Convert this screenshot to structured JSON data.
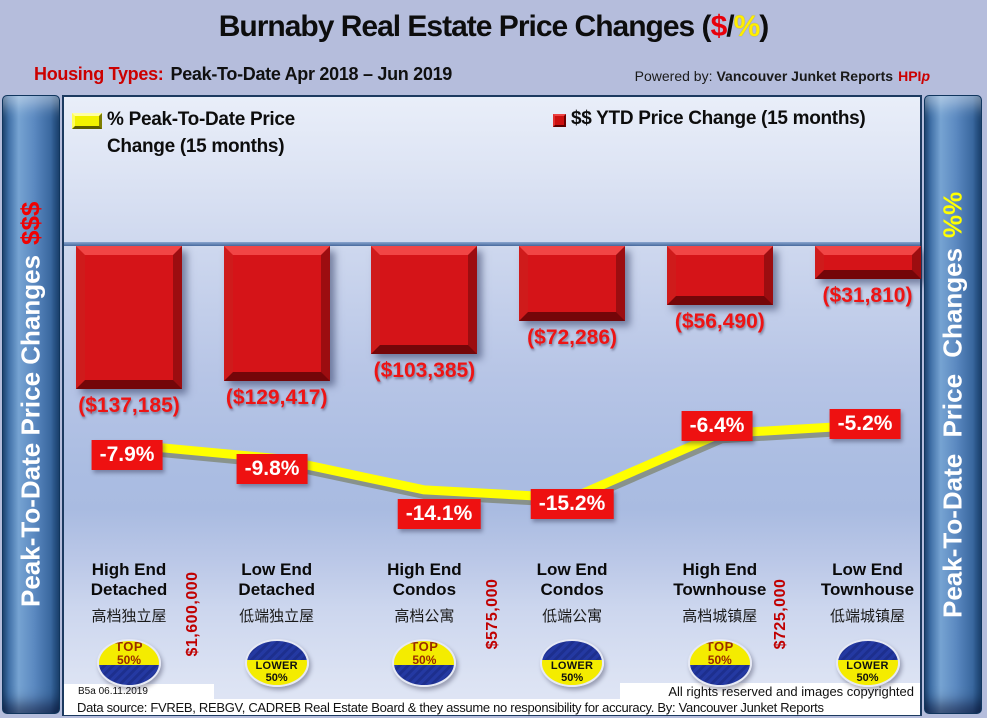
{
  "title": {
    "main": "Burnaby Real Estate Price Changes (",
    "dollar": "$",
    "slash": "/",
    "pct": "%",
    "close": ")"
  },
  "subtitle": {
    "label": "Housing Types:",
    "range": "Peak-To-Date Apr 2018 – Jun 2019"
  },
  "powered_by": {
    "prefix": "Powered by:",
    "brand": "Vancouver Junket Reports",
    "hpi": "HPI",
    "p": "p"
  },
  "legend": {
    "pct_label": "% Peak-To-Date Price Change (15 months)",
    "usd_label": "$$ YTD Price Change (15 months)"
  },
  "left_rail": {
    "text": "Peak-To-Date Price Changes",
    "accent": "$$$"
  },
  "right_rail": {
    "text": "Peak-To-Date Price Changes",
    "accent": "%%"
  },
  "chart_data": {
    "type": "bar+line",
    "categories": [
      "High End Detached",
      "Low End Detached",
      "High End Condos",
      "Low End Condos",
      "High End Townhouse",
      "Low End Townhouse"
    ],
    "categories_zh": [
      "高档独立屋",
      "低端独立屋",
      "高档公寓",
      "低端公寓",
      "高档城镇屋",
      "低端城镇屋"
    ],
    "series": [
      {
        "name": "$$ YTD Price Change (15 months)",
        "type": "bar",
        "color": "#d51418",
        "values": [
          -137185,
          -129417,
          -103385,
          -72286,
          -56490,
          -31810
        ],
        "labels": [
          "($137,185)",
          "($129,417)",
          "($103,385)",
          "($72,286)",
          "($56,490)",
          "($31,810)"
        ]
      },
      {
        "name": "% Peak-To-Date Price Change (15 months)",
        "type": "line",
        "color": "#ffff00",
        "values": [
          -7.9,
          -9.8,
          -14.1,
          -15.2,
          -6.4,
          -5.2
        ],
        "labels": [
          "-7.9%",
          "-9.8%",
          "-14.1%",
          "-15.2%",
          "-6.4%",
          "-5.2%"
        ]
      }
    ],
    "badges": [
      {
        "type": "top",
        "line1": "TOP",
        "line2": "50%"
      },
      {
        "type": "lower",
        "line1": "LOWER",
        "line2": "50%"
      },
      {
        "type": "top",
        "line1": "TOP",
        "line2": "50%"
      },
      {
        "type": "lower",
        "line1": "LOWER",
        "line2": "50%"
      },
      {
        "type": "top",
        "line1": "TOP",
        "line2": "50%"
      },
      {
        "type": "lower",
        "line1": "LOWER",
        "line2": "50%"
      }
    ],
    "separator_prices": [
      "$1,600,000",
      "$575,000",
      "$725,000"
    ],
    "baseline": 0,
    "legend_position": "top",
    "grid": false
  },
  "footer": {
    "code": "B5a 06.11.2019",
    "rights": "All rights reserved and  images copyrighted",
    "source": "Data source: FVREB, REBGV, CADREB Real Estate Board & they assume no responsibility for accuracy. By: Vancouver Junket Reports"
  }
}
